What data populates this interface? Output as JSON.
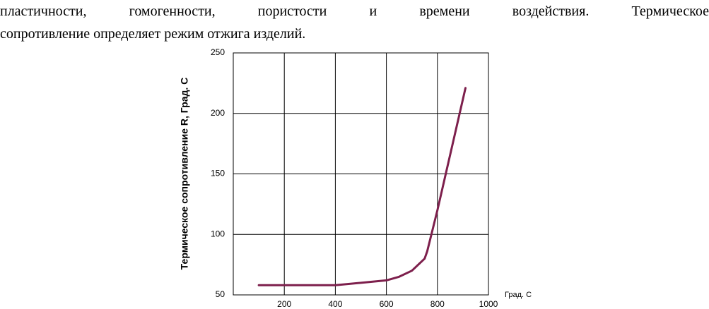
{
  "text": {
    "lines": [
      "пластичности, гомогенности, пористости и времени воздействия. Термическое",
      "сопротивление определяет режим отжига изделий."
    ]
  },
  "chart_data": {
    "type": "line",
    "y_label": "Термическое сопротивление R, Град. С",
    "x_label": "Град. С",
    "x": [
      100,
      300,
      400,
      500,
      600,
      650,
      700,
      750,
      760,
      800,
      910
    ],
    "series": [
      {
        "name": "R",
        "color": "#7d1f4c",
        "values": [
          58,
          58,
          58,
          60,
          62,
          65,
          70,
          80,
          86,
          120,
          221
        ]
      }
    ],
    "xlim": [
      0,
      1000
    ],
    "xticks": [
      200,
      400,
      600,
      800,
      1000
    ],
    "ylim": [
      50,
      250
    ],
    "yticks": [
      50,
      100,
      150,
      200,
      250
    ],
    "grid": true
  }
}
